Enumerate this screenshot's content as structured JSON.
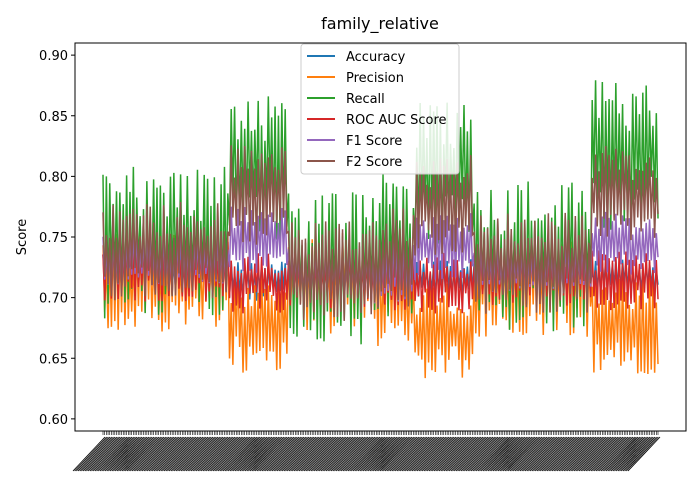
{
  "chart_data": {
    "type": "line",
    "title": "family_relative",
    "xlabel": "",
    "ylabel": "Score",
    "ylim": [
      0.59,
      0.91
    ],
    "yticks": [
      0.6,
      0.65,
      0.7,
      0.75,
      0.8,
      0.85,
      0.9
    ],
    "ytick_labels": [
      "0.60",
      "0.65",
      "0.70",
      "0.75",
      "0.80",
      "0.85",
      "0.90"
    ],
    "x_count": 330,
    "xtick_labels_note": "",
    "grid": false,
    "legend_position": "top-center",
    "x_segments": [
      {
        "start": 0,
        "end": 75,
        "Accuracy": 0.722,
        "Precision": 0.712,
        "Recall": 0.745,
        "ROC AUC Score": 0.722,
        "F1 Score": 0.728,
        "F2 Score": 0.737
      },
      {
        "start": 75,
        "end": 110,
        "Accuracy": 0.714,
        "Precision": 0.68,
        "Recall": 0.81,
        "ROC AUC Score": 0.712,
        "F1 Score": 0.748,
        "F2 Score": 0.785
      },
      {
        "start": 110,
        "end": 160,
        "Accuracy": 0.716,
        "Precision": 0.712,
        "Recall": 0.724,
        "ROC AUC Score": 0.716,
        "F1 Score": 0.718,
        "F2 Score": 0.721
      },
      {
        "start": 160,
        "end": 185,
        "Accuracy": 0.714,
        "Precision": 0.7,
        "Recall": 0.742,
        "ROC AUC Score": 0.714,
        "F1 Score": 0.72,
        "F2 Score": 0.733
      },
      {
        "start": 185,
        "end": 220,
        "Accuracy": 0.715,
        "Precision": 0.672,
        "Recall": 0.805,
        "ROC AUC Score": 0.712,
        "F1 Score": 0.742,
        "F2 Score": 0.776
      },
      {
        "start": 220,
        "end": 290,
        "Accuracy": 0.718,
        "Precision": 0.708,
        "Recall": 0.733,
        "ROC AUC Score": 0.718,
        "F1 Score": 0.72,
        "F2 Score": 0.728
      },
      {
        "start": 290,
        "end": 330,
        "Accuracy": 0.717,
        "Precision": 0.676,
        "Recall": 0.818,
        "ROC AUC Score": 0.714,
        "F1 Score": 0.744,
        "F2 Score": 0.785
      }
    ],
    "series": [
      {
        "name": "Accuracy",
        "color": "#1f77b4"
      },
      {
        "name": "Precision",
        "color": "#ff7f0e"
      },
      {
        "name": "Recall",
        "color": "#2ca02c"
      },
      {
        "name": "ROC AUC Score",
        "color": "#d62728"
      },
      {
        "name": "F1 Score",
        "color": "#9467bd"
      },
      {
        "name": "F2 Score",
        "color": "#8c564b"
      }
    ]
  }
}
